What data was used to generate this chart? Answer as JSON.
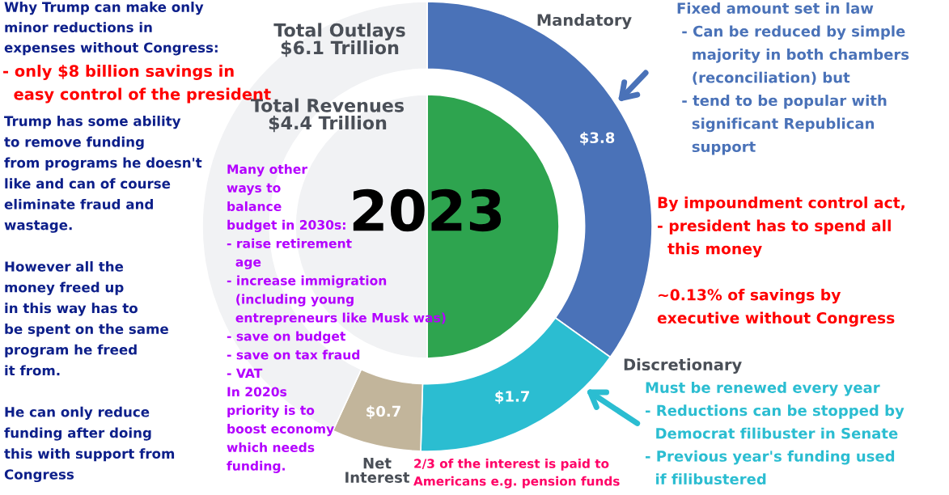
{
  "chart_data": {
    "type": "donut",
    "title": "Total Outlays $6.1 Trillion",
    "subtitle": "Total Revenues $4.4 Trillion",
    "categories": [
      "Mandatory",
      "Discretionary",
      "Net Interest",
      null
    ],
    "series": [
      {
        "values": [
          3.8,
          1.7,
          0.7,
          4.7
        ],
        "colors": [
          "#4a72b8",
          "#2bbdd1",
          "#c2b59b",
          "#f1f2f4"
        ],
        "value_labels": [
          "$3.8",
          "$1.7",
          "$0.7",
          null
        ]
      },
      {
        "type": "pie",
        "values": [
          50,
          null,
          null,
          50
        ],
        "colors": [
          "#2ea44f",
          null,
          null,
          "#f1f2f4"
        ]
      }
    ],
    "annotations": [
      "Why Trump can make only\nminor reductions in\nexpenses without Congress:",
      "- only $8 billion savings in\n  easy control of the president",
      "Trump has some ability\nto remove funding\nfrom programs he doesn't\nlike and can of course\neliminate fraud and\nwastage.\n\nHowever all the\nmoney freed up\nin this way has to\nbe spent on the same\nprogram he freed\nit from.\n\nHe can only reduce\nfunding after doing\nthis with support from\nCongress",
      "Many other\nways to\nbalance\nbudget in 2030s:\n- raise retirement\n  age\n- increase immigration\n  (including young\n  entrepreneurs like Musk was)\n- save on budget\n- save on tax fraud\n- VAT\nIn 2020s\npriority is to\nboost economy\nwhich needs\nfunding.",
      "Fixed amount set in law\n - Can be reduced by simple\n   majority in both chambers\n   (reconciliation) but\n - tend to be popular with\n   significant Republican\n   support",
      "By impoundment control act,\n- president has to spend all\n  this money",
      "~0.13% of savings by\nexecutive without Congress",
      "Must be renewed every year\n- Reductions can be stopped by\n  Democrat filibuster in Senate\n- Previous year's funding used\n  if filibustered",
      "2/3 of the interest is paid to\nAmericans e.g. pension funds",
      "2023"
    ]
  }
}
